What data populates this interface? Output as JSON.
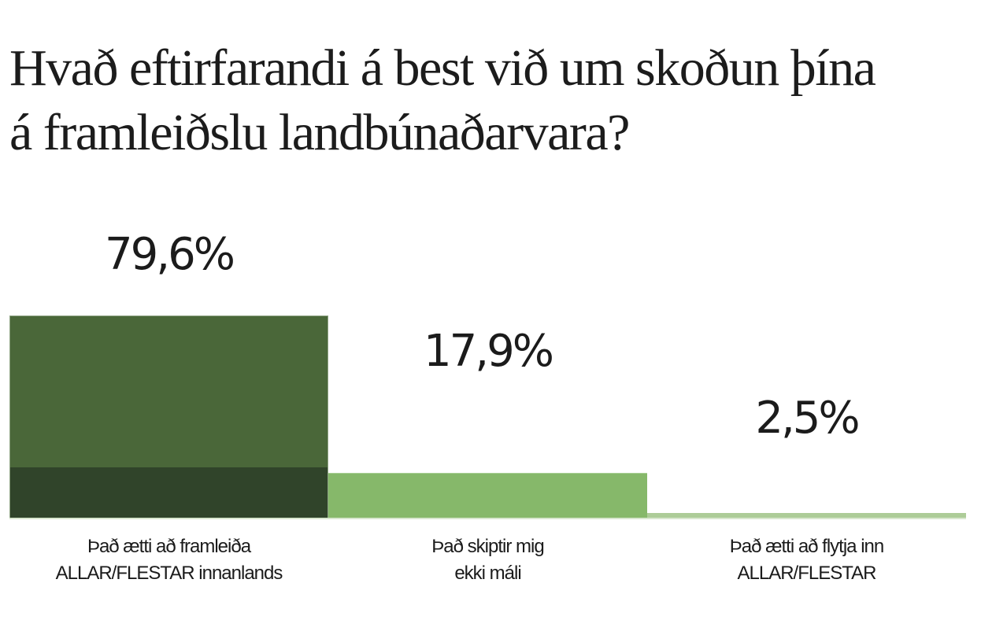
{
  "title": {
    "line1": "Hvað eftirfarandi á best við um skoðun þína",
    "line2": "á framleiðslu landbúnaðarvara?"
  },
  "bars": [
    {
      "value_label": "79,6%",
      "label_line1": "Það ætti að framleiða",
      "label_line2": "ALLAR/FLESTAR innanlands",
      "color": "#4a6739",
      "band_color": "#30442a"
    },
    {
      "value_label": "17,9%",
      "label_line1": "Það skiptir mig",
      "label_line2": "ekki máli",
      "color": "#86b86a"
    },
    {
      "value_label": "2,5%",
      "label_line1": "Það ætti að flytja inn",
      "label_line2": "ALLAR/FLESTAR",
      "color": "#adcc98"
    }
  ],
  "chart_data": {
    "type": "bar",
    "title": "Hvað eftirfarandi á best við um skoðun þína á framleiðslu landbúnaðarvara?",
    "categories": [
      "Það ætti að framleiða ALLAR/FLESTAR innanlands",
      "Það skiptir mig ekki máli",
      "Það ætti að flytja inn ALLAR/FLESTAR"
    ],
    "values": [
      79.6,
      17.9,
      2.5
    ],
    "value_labels": [
      "79,6%",
      "17,9%",
      "2,5%"
    ],
    "colors": [
      "#4a6739",
      "#86b86a",
      "#adcc98"
    ],
    "xlabel": "",
    "ylabel": "",
    "unit": "%",
    "grid": false,
    "legend": false
  }
}
